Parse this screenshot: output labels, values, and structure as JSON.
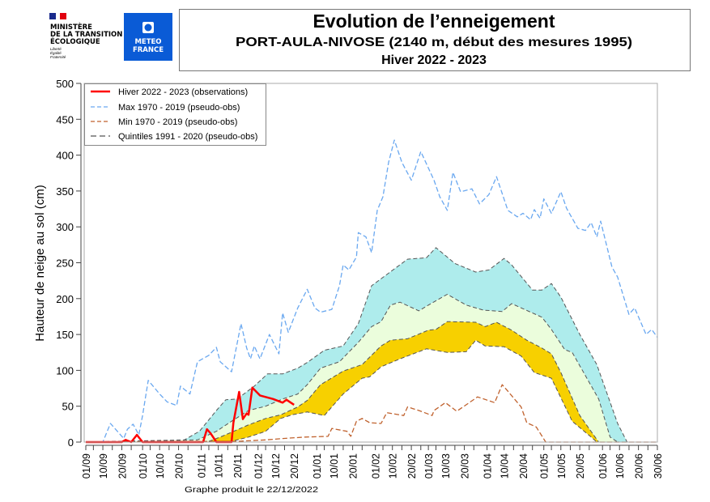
{
  "header": {
    "ministry_lines": [
      "MINISTÈRE",
      "DE LA TRANSITION",
      "ÉCOLOGIQUE"
    ],
    "motto_lines": [
      "Liberté",
      "Égalité",
      "Fraternité"
    ],
    "meteo_logo_lines": [
      "METEO",
      "FRANCE"
    ],
    "meteo_logo_color": "#0a5bd6",
    "title": "Evolution de l’enneigement",
    "subtitle": "PORT-AULA-NIVOSE (2140 m, début des mesures 1995)",
    "season": "Hiver 2022 - 2023"
  },
  "footer": {
    "produced": "Graphe produit le 22/12/2022"
  },
  "chart_data": {
    "type": "line",
    "title": "Evolution de l’enneigement",
    "ylabel": "Hauteur de neige au sol (cm)",
    "xlabel": "",
    "ylim": [
      0,
      500
    ],
    "xlim": [
      "2022-09-01",
      "2023-06-30"
    ],
    "y_ticks": [
      0,
      50,
      100,
      150,
      200,
      250,
      300,
      350,
      400,
      450,
      500
    ],
    "x_tick_labels": [
      "01/09",
      "10/09",
      "20/09",
      "01/10",
      "10/10",
      "20/10",
      "01/11",
      "10/11",
      "20/11",
      "01/12",
      "10/12",
      "20/12",
      "01/01",
      "10/01",
      "20/01",
      "01/02",
      "10/02",
      "20/02",
      "01/03",
      "10/03",
      "20/03",
      "01/04",
      "10/04",
      "20/04",
      "01/05",
      "10/05",
      "20/05",
      "01/06",
      "10/06",
      "20/06",
      "30/06"
    ],
    "grid": false,
    "legend_position": "top-left",
    "legend": [
      {
        "label": "Hiver 2022 - 2023 (observations)",
        "color": "#ff0000",
        "style": "solid"
      },
      {
        "label": "Max 1970 - 2019 (pseudo-obs)",
        "color": "#6aa8f0",
        "style": "dashed"
      },
      {
        "label": "Min 1970 - 2019 (pseudo-obs)",
        "color": "#c0622e",
        "style": "dashed"
      },
      {
        "label": "Quintiles 1991 - 2020 (pseudo-obs)",
        "color": "#555555",
        "style": "dashed"
      }
    ],
    "band_colors": {
      "q20_q40": "#f7d000",
      "q40_q60": "#ebfddc",
      "q60_q80": "#aeecec"
    },
    "series": {
      "observations": [
        [
          "2022-09-01",
          0
        ],
        [
          "2022-09-20",
          0
        ],
        [
          "2022-09-22",
          3
        ],
        [
          "2022-09-25",
          0
        ],
        [
          "2022-09-28",
          10
        ],
        [
          "2022-10-01",
          0
        ],
        [
          "2022-11-02",
          0
        ],
        [
          "2022-11-04",
          18
        ],
        [
          "2022-11-06",
          12
        ],
        [
          "2022-11-09",
          0
        ],
        [
          "2022-11-17",
          0
        ],
        [
          "2022-11-18",
          27
        ],
        [
          "2022-11-21",
          70
        ],
        [
          "2022-11-23",
          32
        ],
        [
          "2022-11-25",
          40
        ],
        [
          "2022-11-26",
          38
        ],
        [
          "2022-11-28",
          76
        ],
        [
          "2022-12-02",
          65
        ],
        [
          "2022-12-09",
          60
        ],
        [
          "2022-12-14",
          55
        ],
        [
          "2022-12-16",
          59
        ],
        [
          "2022-12-20",
          52
        ]
      ],
      "max": [
        [
          "2022-09-01",
          0
        ],
        [
          "2022-09-10",
          0
        ],
        [
          "2022-09-14",
          26
        ],
        [
          "2022-09-21",
          5
        ],
        [
          "2022-09-23",
          18
        ],
        [
          "2022-09-26",
          25
        ],
        [
          "2022-09-29",
          10
        ],
        [
          "2022-10-01",
          37
        ],
        [
          "2022-10-04",
          86
        ],
        [
          "2022-10-10",
          67
        ],
        [
          "2022-10-14",
          56
        ],
        [
          "2022-10-19",
          51
        ],
        [
          "2022-10-21",
          78
        ],
        [
          "2022-10-26",
          67
        ],
        [
          "2022-10-30",
          112
        ],
        [
          "2022-11-05",
          121
        ],
        [
          "2022-11-09",
          132
        ],
        [
          "2022-11-11",
          112
        ],
        [
          "2022-11-17",
          98
        ],
        [
          "2022-11-22",
          165
        ],
        [
          "2022-11-25",
          131
        ],
        [
          "2022-11-27",
          116
        ],
        [
          "2022-11-29",
          134
        ],
        [
          "2022-12-02",
          116
        ],
        [
          "2022-12-07",
          150
        ],
        [
          "2022-12-12",
          123
        ],
        [
          "2022-12-14",
          180
        ],
        [
          "2022-12-17",
          153
        ],
        [
          "2022-12-22",
          187
        ],
        [
          "2022-12-27",
          213
        ],
        [
          "2022-12-31",
          187
        ],
        [
          "2023-01-03",
          181
        ],
        [
          "2023-01-09",
          185
        ],
        [
          "2023-01-13",
          218
        ],
        [
          "2023-01-15",
          247
        ],
        [
          "2023-01-18",
          240
        ],
        [
          "2023-01-22",
          258
        ],
        [
          "2023-01-23",
          292
        ],
        [
          "2023-01-27",
          286
        ],
        [
          "2023-01-30",
          264
        ],
        [
          "2023-02-02",
          323
        ],
        [
          "2023-02-05",
          342
        ],
        [
          "2023-02-08",
          390
        ],
        [
          "2023-02-11",
          421
        ],
        [
          "2023-02-15",
          390
        ],
        [
          "2023-02-20",
          365
        ],
        [
          "2023-02-25",
          405
        ],
        [
          "2023-03-04",
          365
        ],
        [
          "2023-03-07",
          342
        ],
        [
          "2023-03-11",
          323
        ],
        [
          "2023-03-14",
          376
        ],
        [
          "2023-03-18",
          349
        ],
        [
          "2023-03-24",
          353
        ],
        [
          "2023-03-28",
          332
        ],
        [
          "2023-04-02",
          345
        ],
        [
          "2023-04-06",
          370
        ],
        [
          "2023-04-12",
          323
        ],
        [
          "2023-04-17",
          314
        ],
        [
          "2023-04-20",
          319
        ],
        [
          "2023-04-24",
          310
        ],
        [
          "2023-04-26",
          324
        ],
        [
          "2023-04-29",
          312
        ],
        [
          "2023-05-01",
          339
        ],
        [
          "2023-05-05",
          319
        ],
        [
          "2023-05-10",
          349
        ],
        [
          "2023-05-13",
          326
        ],
        [
          "2023-05-19",
          298
        ],
        [
          "2023-05-23",
          295
        ],
        [
          "2023-05-26",
          306
        ],
        [
          "2023-05-29",
          286
        ],
        [
          "2023-05-31",
          308
        ],
        [
          "2023-06-06",
          244
        ],
        [
          "2023-06-09",
          230
        ],
        [
          "2023-06-15",
          178
        ],
        [
          "2023-06-18",
          187
        ],
        [
          "2023-06-24",
          150
        ],
        [
          "2023-06-27",
          157
        ],
        [
          "2023-06-30",
          146
        ]
      ],
      "min": [
        [
          "2022-09-01",
          0
        ],
        [
          "2022-11-20",
          1
        ],
        [
          "2022-12-05",
          3
        ],
        [
          "2022-12-14",
          5
        ],
        [
          "2022-12-26",
          7
        ],
        [
          "2023-01-07",
          8
        ],
        [
          "2023-01-09",
          19
        ],
        [
          "2023-01-17",
          15
        ],
        [
          "2023-01-19",
          8
        ],
        [
          "2023-01-22",
          29
        ],
        [
          "2023-01-25",
          33
        ],
        [
          "2023-01-29",
          27
        ],
        [
          "2023-02-04",
          26
        ],
        [
          "2023-02-07",
          41
        ],
        [
          "2023-02-16",
          37
        ],
        [
          "2023-02-18",
          49
        ],
        [
          "2023-02-24",
          44
        ],
        [
          "2023-03-03",
          37
        ],
        [
          "2023-03-04",
          44
        ],
        [
          "2023-03-10",
          55
        ],
        [
          "2023-03-16",
          43
        ],
        [
          "2023-03-21",
          52
        ],
        [
          "2023-03-27",
          63
        ],
        [
          "2023-04-05",
          55
        ],
        [
          "2023-04-09",
          80
        ],
        [
          "2023-04-12",
          71
        ],
        [
          "2023-04-19",
          49
        ],
        [
          "2023-04-22",
          27
        ],
        [
          "2023-04-27",
          21
        ],
        [
          "2023-05-02",
          0
        ],
        [
          "2023-06-30",
          0
        ]
      ],
      "q20": [
        [
          "2022-09-01",
          0
        ],
        [
          "2022-11-17",
          1
        ],
        [
          "2022-11-26",
          7
        ],
        [
          "2022-12-05",
          15
        ],
        [
          "2022-12-13",
          33
        ],
        [
          "2022-12-19",
          38
        ],
        [
          "2022-12-27",
          42
        ],
        [
          "2023-01-05",
          37
        ],
        [
          "2023-01-15",
          67
        ],
        [
          "2023-01-25",
          89
        ],
        [
          "2023-01-29",
          91
        ],
        [
          "2023-02-04",
          105
        ],
        [
          "2023-02-14",
          116
        ],
        [
          "2023-02-28",
          130
        ],
        [
          "2023-03-11",
          125
        ],
        [
          "2023-03-21",
          126
        ],
        [
          "2023-03-26",
          142
        ],
        [
          "2023-03-31",
          134
        ],
        [
          "2023-04-10",
          133
        ],
        [
          "2023-04-19",
          120
        ],
        [
          "2023-04-26",
          97
        ],
        [
          "2023-05-05",
          89
        ],
        [
          "2023-05-16",
          29
        ],
        [
          "2023-05-26",
          7
        ],
        [
          "2023-05-29",
          0
        ],
        [
          "2023-06-30",
          0
        ]
      ],
      "q40": [
        [
          "2022-09-01",
          0
        ],
        [
          "2022-11-05",
          1
        ],
        [
          "2022-11-11",
          7
        ],
        [
          "2022-11-19",
          16
        ],
        [
          "2022-11-26",
          24
        ],
        [
          "2022-12-05",
          33
        ],
        [
          "2022-12-13",
          38
        ],
        [
          "2022-12-22",
          49
        ],
        [
          "2022-12-27",
          58
        ],
        [
          "2023-01-03",
          80
        ],
        [
          "2023-01-15",
          99
        ],
        [
          "2023-01-25",
          108
        ],
        [
          "2023-02-04",
          134
        ],
        [
          "2023-02-09",
          142
        ],
        [
          "2023-02-18",
          144
        ],
        [
          "2023-03-01",
          156
        ],
        [
          "2023-03-05",
          157
        ],
        [
          "2023-03-11",
          168
        ],
        [
          "2023-03-26",
          167
        ],
        [
          "2023-03-31",
          161
        ],
        [
          "2023-04-06",
          167
        ],
        [
          "2023-04-14",
          156
        ],
        [
          "2023-04-22",
          142
        ],
        [
          "2023-04-30",
          131
        ],
        [
          "2023-05-05",
          123
        ],
        [
          "2023-05-10",
          97
        ],
        [
          "2023-05-20",
          37
        ],
        [
          "2023-05-30",
          0
        ],
        [
          "2023-06-30",
          0
        ]
      ],
      "q60": [
        [
          "2022-09-01",
          0
        ],
        [
          "2022-10-30",
          3
        ],
        [
          "2022-11-09",
          15
        ],
        [
          "2022-11-17",
          29
        ],
        [
          "2022-11-26",
          44
        ],
        [
          "2022-12-05",
          50
        ],
        [
          "2022-12-14",
          60
        ],
        [
          "2022-12-22",
          67
        ],
        [
          "2022-12-27",
          80
        ],
        [
          "2023-01-03",
          103
        ],
        [
          "2023-01-13",
          112
        ],
        [
          "2023-01-23",
          139
        ],
        [
          "2023-01-30",
          161
        ],
        [
          "2023-02-04",
          168
        ],
        [
          "2023-02-09",
          191
        ],
        [
          "2023-02-14",
          195
        ],
        [
          "2023-02-24",
          183
        ],
        [
          "2023-03-01",
          191
        ],
        [
          "2023-03-11",
          206
        ],
        [
          "2023-03-21",
          191
        ],
        [
          "2023-03-30",
          184
        ],
        [
          "2023-04-09",
          182
        ],
        [
          "2023-04-14",
          193
        ],
        [
          "2023-04-30",
          174
        ],
        [
          "2023-05-05",
          157
        ],
        [
          "2023-05-12",
          129
        ],
        [
          "2023-05-16",
          125
        ],
        [
          "2023-05-30",
          60
        ],
        [
          "2023-06-05",
          7
        ],
        [
          "2023-06-09",
          0
        ],
        [
          "2023-06-30",
          0
        ]
      ],
      "q80": [
        [
          "2022-09-01",
          0
        ],
        [
          "2022-10-23",
          3
        ],
        [
          "2022-10-31",
          15
        ],
        [
          "2022-11-09",
          44
        ],
        [
          "2022-11-14",
          59
        ],
        [
          "2022-11-20",
          60
        ],
        [
          "2022-11-29",
          78
        ],
        [
          "2022-12-06",
          95
        ],
        [
          "2022-12-14",
          95
        ],
        [
          "2022-12-22",
          103
        ],
        [
          "2022-12-27",
          111
        ],
        [
          "2023-01-05",
          128
        ],
        [
          "2023-01-15",
          134
        ],
        [
          "2023-01-23",
          165
        ],
        [
          "2023-01-30",
          218
        ],
        [
          "2023-02-18",
          255
        ],
        [
          "2023-02-28",
          257
        ],
        [
          "2023-03-05",
          271
        ],
        [
          "2023-03-15",
          249
        ],
        [
          "2023-03-26",
          237
        ],
        [
          "2023-04-02",
          240
        ],
        [
          "2023-04-10",
          256
        ],
        [
          "2023-04-14",
          247
        ],
        [
          "2023-04-25",
          212
        ],
        [
          "2023-04-30",
          212
        ],
        [
          "2023-05-05",
          221
        ],
        [
          "2023-05-10",
          202
        ],
        [
          "2023-05-20",
          150
        ],
        [
          "2023-05-29",
          108
        ],
        [
          "2023-06-09",
          26
        ],
        [
          "2023-06-14",
          0
        ],
        [
          "2023-06-30",
          0
        ]
      ]
    }
  }
}
